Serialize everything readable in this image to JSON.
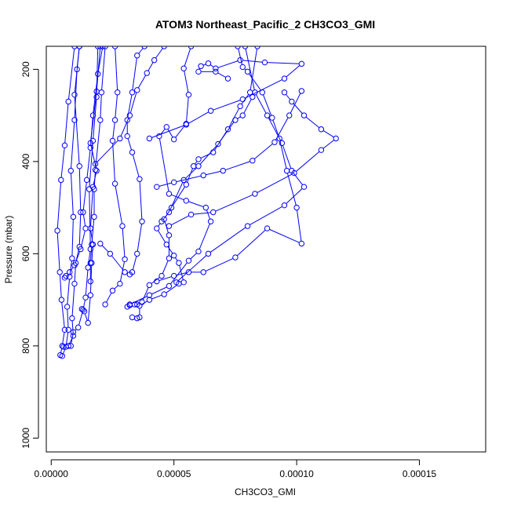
{
  "chart_data": {
    "type": "line",
    "title": "ATOM3 Northeast_Pacific_2 CH3CO3_GMI",
    "xlabel": "CH3CO3_GMI",
    "ylabel": "Pressure (mbar)",
    "xlim": [
      -2e-06,
      0.000177
    ],
    "ylim": [
      1030,
      150
    ],
    "y_reversed": true,
    "x_ticks": [
      0,
      5e-05,
      0.0001,
      0.00015
    ],
    "x_tick_labels": [
      "0.00000",
      "0.00005",
      "0.00010",
      "0.00015"
    ],
    "y_ticks": [
      200,
      400,
      600,
      800,
      1000
    ],
    "y_tick_labels": [
      "200",
      "400",
      "600",
      "800",
      "1000"
    ],
    "grid": false,
    "series_color": "#0000ff",
    "series": [
      {
        "points": [
          [
            3.7e-06,
            820
          ],
          [
            4.5e-06,
            800
          ],
          [
            5.5e-06,
            765
          ],
          [
            4.2e-06,
            700
          ],
          [
            3.5e-06,
            640
          ],
          [
            2.5e-06,
            550
          ],
          [
            4e-06,
            440
          ],
          [
            5.5e-06,
            365
          ],
          [
            7e-06,
            270
          ],
          [
            9.5e-06,
            150
          ]
        ]
      },
      {
        "points": [
          [
            4.5e-06,
            822
          ],
          [
            6e-06,
            802
          ],
          [
            7e-06,
            765
          ],
          [
            6.5e-06,
            715
          ],
          [
            7.5e-06,
            650
          ],
          [
            8.5e-06,
            610
          ],
          [
            9e-06,
            520
          ],
          [
            8e-06,
            420
          ],
          [
            9.5e-06,
            310
          ],
          [
            1.05e-05,
            200
          ],
          [
            1.15e-05,
            150
          ]
        ]
      },
      {
        "points": [
          [
            5e-06,
            802
          ],
          [
            7e-06,
            800
          ],
          [
            9e-06,
            778
          ],
          [
            8.5e-06,
            740
          ],
          [
            9.5e-06,
            665
          ],
          [
            1e-05,
            620
          ],
          [
            1.15e-05,
            585
          ],
          [
            1.2e-05,
            510
          ],
          [
            1.15e-05,
            410
          ],
          [
            9.5e-06,
            255
          ],
          [
            1.15e-05,
            150
          ]
        ]
      },
      {
        "points": [
          [
            5.5e-06,
            652
          ],
          [
            6e-06,
            648
          ],
          [
            7.5e-06,
            640
          ],
          [
            9.5e-06,
            625
          ],
          [
            1.2e-05,
            590
          ],
          [
            1.4e-05,
            545
          ],
          [
            1.3e-05,
            510
          ],
          [
            1.45e-05,
            440
          ],
          [
            1.6e-05,
            370
          ],
          [
            1.7e-05,
            300
          ],
          [
            1.9e-05,
            210
          ],
          [
            2.1e-05,
            150
          ]
        ]
      },
      {
        "points": [
          [
            8e-06,
            800
          ],
          [
            9e-06,
            770
          ],
          [
            1.1e-05,
            760
          ],
          [
            1.3e-05,
            722
          ],
          [
            1.4e-05,
            695
          ],
          [
            1.5e-05,
            630
          ],
          [
            1.6e-05,
            590
          ],
          [
            1.55e-05,
            460
          ],
          [
            1.7e-05,
            355
          ],
          [
            1.85e-05,
            260
          ],
          [
            1.9e-05,
            150
          ]
        ]
      },
      {
        "points": [
          [
            1.25e-05,
            720
          ],
          [
            1.35e-05,
            725
          ],
          [
            1.5e-05,
            750
          ],
          [
            1.6e-05,
            690
          ],
          [
            1.65e-05,
            620
          ],
          [
            1.7e-05,
            580
          ],
          [
            1.6e-05,
            545
          ],
          [
            1.7e-05,
            455
          ],
          [
            1.85e-05,
            420
          ],
          [
            1.6e-05,
            360
          ],
          [
            1.85e-05,
            248
          ],
          [
            2e-05,
            150
          ]
        ]
      },
      {
        "points": [
          [
            1.6e-05,
            660
          ],
          [
            1.6e-05,
            620
          ],
          [
            1.65e-05,
            580
          ],
          [
            1.75e-05,
            520
          ],
          [
            1.75e-05,
            460
          ],
          [
            1.8e-05,
            418
          ],
          [
            2e-05,
            310
          ],
          [
            2.05e-05,
            250
          ],
          [
            2.2e-05,
            150
          ]
        ]
      },
      {
        "points": [
          [
            2.2e-05,
            710
          ],
          [
            2.5e-05,
            680
          ],
          [
            2.8e-05,
            665
          ],
          [
            3e-05,
            612
          ],
          [
            2.9e-05,
            540
          ],
          [
            2.6e-05,
            448
          ],
          [
            2.5e-05,
            355
          ],
          [
            2.6e-05,
            310
          ],
          [
            2.7e-05,
            250
          ],
          [
            2.6e-05,
            150
          ]
        ]
      },
      {
        "points": [
          [
            2e-05,
            578
          ],
          [
            2.4e-05,
            600
          ],
          [
            3e-05,
            640
          ],
          [
            3.2e-05,
            645
          ],
          [
            3.3e-05,
            640
          ],
          [
            3.5e-05,
            600
          ],
          [
            3.7e-05,
            530
          ],
          [
            3.6e-05,
            438
          ],
          [
            3.3e-05,
            380
          ],
          [
            3.1e-05,
            345
          ],
          [
            3.1e-05,
            310
          ],
          [
            3.3e-05,
            250
          ],
          [
            3.5e-05,
            170
          ],
          [
            3.8e-05,
            150
          ]
        ]
      },
      {
        "points": [
          [
            1.8e-05,
            405
          ],
          [
            2.8e-05,
            350
          ],
          [
            3.2e-05,
            300
          ],
          [
            3.5e-05,
            245
          ],
          [
            3.9e-05,
            208
          ],
          [
            4.2e-05,
            180
          ],
          [
            4.6e-05,
            150
          ]
        ]
      },
      {
        "points": [
          [
            3.1e-05,
            715
          ],
          [
            3.2e-05,
            712
          ],
          [
            3.4e-05,
            710
          ],
          [
            3.5e-05,
            710
          ],
          [
            3.7e-05,
            705
          ],
          [
            4e-05,
            668
          ],
          [
            4.5e-05,
            648
          ],
          [
            4.8e-05,
            610
          ],
          [
            4.8e-05,
            560
          ],
          [
            4.6e-05,
            525
          ],
          [
            4.9e-05,
            500
          ],
          [
            5.5e-05,
            450
          ],
          [
            5.8e-05,
            410
          ],
          [
            6e-05,
            395
          ],
          [
            6.6e-05,
            380
          ],
          [
            7.2e-05,
            330
          ],
          [
            7.7e-05,
            280
          ],
          [
            8.1e-05,
            250
          ],
          [
            8.4e-05,
            150
          ]
        ]
      },
      {
        "points": [
          [
            3.3e-05,
            738
          ],
          [
            3.5e-05,
            740
          ],
          [
            3.6e-05,
            738
          ],
          [
            3.6e-05,
            713
          ],
          [
            4e-05,
            700
          ],
          [
            4.6e-05,
            688
          ],
          [
            5.2e-05,
            665
          ],
          [
            5.4e-05,
            662
          ],
          [
            5.2e-05,
            620
          ],
          [
            5e-05,
            604
          ],
          [
            4.7e-05,
            580
          ],
          [
            4.3e-05,
            545
          ],
          [
            4.5e-05,
            530
          ],
          [
            4.8e-05,
            510
          ],
          [
            5.4e-05,
            440
          ],
          [
            6e-05,
            410
          ],
          [
            6.8e-05,
            362
          ],
          [
            7.5e-05,
            310
          ],
          [
            7.8e-05,
            300
          ],
          [
            8.2e-05,
            260
          ]
        ]
      },
      {
        "points": [
          [
            3.2e-05,
            710
          ],
          [
            4e-05,
            690
          ],
          [
            4.8e-05,
            670
          ],
          [
            5.6e-05,
            615
          ],
          [
            6e-05,
            595
          ],
          [
            6.5e-05,
            530
          ],
          [
            6.3e-05,
            500
          ],
          [
            5.5e-05,
            485
          ],
          [
            4.8e-05,
            470
          ],
          [
            4.4e-05,
            345
          ],
          [
            4.7e-05,
            325
          ],
          [
            5e-05,
            352
          ],
          [
            5.5e-05,
            318
          ],
          [
            5.6e-05,
            255
          ],
          [
            5.4e-05,
            198
          ],
          [
            5.7e-05,
            150
          ]
        ]
      },
      {
        "points": [
          [
            4.3e-05,
            660
          ],
          [
            5e-05,
            648
          ],
          [
            5.6e-05,
            640
          ],
          [
            6.2e-05,
            640
          ],
          [
            7.5e-05,
            608
          ],
          [
            8.8e-05,
            545
          ],
          [
            0.000102,
            578
          ],
          [
            0.0001,
            500
          ],
          [
            9.6e-05,
            420
          ],
          [
            9.3e-05,
            350
          ],
          [
            9e-05,
            305
          ],
          [
            8.6e-05,
            250
          ],
          [
            8e-05,
            205
          ],
          [
            7.8e-05,
            195
          ],
          [
            7.6e-05,
            150
          ]
        ]
      },
      {
        "points": [
          [
            5.1e-05,
            662
          ],
          [
            6.4e-05,
            600
          ],
          [
            8e-05,
            540
          ],
          [
            9.5e-05,
            495
          ],
          [
            0.000103,
            455
          ],
          [
            9.8e-05,
            420
          ],
          [
            9.4e-05,
            360
          ],
          [
            8.8e-05,
            300
          ],
          [
            8.3e-05,
            250
          ],
          [
            7.9e-05,
            150
          ]
        ]
      },
      {
        "points": [
          [
            4.8e-05,
            540
          ],
          [
            5.7e-05,
            515
          ],
          [
            6.6e-05,
            510
          ],
          [
            8.3e-05,
            470
          ],
          [
            9.9e-05,
            425
          ],
          [
            0.00011,
            375
          ],
          [
            0.000116,
            350
          ],
          [
            0.00011,
            330
          ],
          [
            0.000103,
            300
          ],
          [
            9.8e-05,
            270
          ],
          [
            9.5e-05,
            250
          ]
        ]
      },
      {
        "points": [
          [
            4.3e-05,
            455
          ],
          [
            5e-05,
            445
          ],
          [
            6.2e-05,
            430
          ],
          [
            7e-05,
            420
          ],
          [
            8.2e-05,
            398
          ],
          [
            9.1e-05,
            358
          ],
          [
            9.7e-05,
            300
          ],
          [
            0.000102,
            247
          ]
        ]
      },
      {
        "points": [
          [
            4e-05,
            350
          ],
          [
            5.5e-05,
            320
          ],
          [
            6.5e-05,
            290
          ],
          [
            7.8e-05,
            265
          ],
          [
            9.5e-05,
            220
          ],
          [
            0.000102,
            188
          ],
          [
            8.7e-05,
            185
          ],
          [
            7.7e-05,
            180
          ],
          [
            6.7e-05,
            198
          ],
          [
            6.4e-05,
            187
          ],
          [
            6.1e-05,
            193
          ],
          [
            6e-05,
            205
          ],
          [
            6.7e-05,
            205
          ],
          [
            7.2e-05,
            220
          ]
        ]
      }
    ]
  }
}
